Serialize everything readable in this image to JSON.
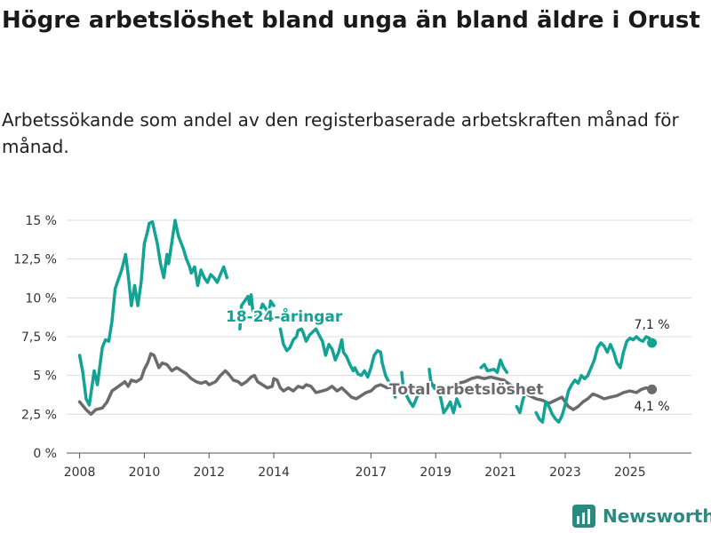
{
  "title": "Högre arbetslöshet bland unga än bland äldre i Orust",
  "subtitle": "Arbetssökande som andel av den registerbaserade arbetskraften månad för månad.",
  "brand": {
    "name": "Newsworthy",
    "icon": "newsworthy-chart-icon",
    "color": "#2a8a80"
  },
  "chart_data": {
    "type": "line",
    "title": "Högre arbetslöshet bland unga än bland äldre i Orust",
    "xlabel": "",
    "ylabel": "",
    "xlim": [
      2007.6,
      2026.9
    ],
    "ylim": [
      0,
      15
    ],
    "y_ticks": [
      0,
      2.5,
      5,
      7.5,
      10,
      12.5,
      15
    ],
    "y_tick_labels": [
      "0 %",
      "2,5 %",
      "5 %",
      "7,5 %",
      "10 %",
      "12,5 %",
      "15 %"
    ],
    "x_ticks": [
      2008,
      2010,
      2012,
      2014,
      2017,
      2019,
      2021,
      2023,
      2025
    ],
    "x_tick_labels": [
      "2008",
      "2010",
      "2012",
      "2014",
      "2017",
      "2019",
      "2021",
      "2023",
      "2025"
    ],
    "grid": true,
    "series": [
      {
        "name": "18-24-åringar",
        "label": "18-24-åringar",
        "color": "#13a394",
        "end_label": "7,1 %",
        "points": [
          [
            2008.0,
            6.3
          ],
          [
            2008.1,
            5.2
          ],
          [
            2008.2,
            3.5
          ],
          [
            2008.3,
            3.1
          ],
          [
            2008.45,
            5.3
          ],
          [
            2008.55,
            4.4
          ],
          [
            2008.7,
            6.8
          ],
          [
            2008.8,
            7.3
          ],
          [
            2008.9,
            7.2
          ],
          [
            2009.0,
            8.5
          ],
          [
            2009.1,
            10.6
          ],
          [
            2009.3,
            11.8
          ],
          [
            2009.42,
            12.8
          ],
          [
            2009.5,
            11.5
          ],
          [
            2009.6,
            9.5
          ],
          [
            2009.7,
            10.8
          ],
          [
            2009.8,
            9.5
          ],
          [
            2009.9,
            11.0
          ],
          [
            2010.0,
            13.5
          ],
          [
            2010.1,
            14.3
          ],
          [
            2010.15,
            14.8
          ],
          [
            2010.25,
            14.9
          ],
          [
            2010.4,
            13.5
          ],
          [
            2010.5,
            12.2
          ],
          [
            2010.6,
            11.3
          ],
          [
            2010.7,
            12.8
          ],
          [
            2010.75,
            12.2
          ],
          [
            2010.85,
            13.6
          ],
          [
            2010.95,
            15.0
          ],
          [
            2011.05,
            14.0
          ],
          [
            2011.2,
            13.2
          ],
          [
            2011.3,
            12.5
          ],
          [
            2011.4,
            12.0
          ],
          [
            2011.45,
            11.6
          ],
          [
            2011.55,
            12.0
          ],
          [
            2011.65,
            10.8
          ],
          [
            2011.75,
            11.8
          ],
          [
            2011.85,
            11.3
          ],
          [
            2011.95,
            11.0
          ],
          [
            2012.05,
            11.5
          ],
          [
            2012.15,
            11.3
          ],
          [
            2012.25,
            11.0
          ],
          [
            2012.35,
            11.5
          ],
          [
            2012.45,
            12.0
          ],
          [
            2012.55,
            11.3
          ]
        ],
        "segments_after_gap": [
          [
            [
              2012.95,
              8.0
            ],
            [
              2013.0,
              9.5
            ],
            [
              2013.1,
              9.8
            ],
            [
              2013.2,
              10.1
            ],
            [
              2013.25,
              9.6
            ],
            [
              2013.3,
              10.2
            ],
            [
              2013.35,
              9.2
            ],
            [
              2013.45,
              8.8
            ],
            [
              2013.55,
              9.0
            ],
            [
              2013.65,
              9.6
            ],
            [
              2013.75,
              9.3
            ],
            [
              2013.85,
              9.0
            ],
            [
              2013.9,
              9.8
            ],
            [
              2014.0,
              9.5
            ]
          ],
          [
            [
              2014.2,
              8.0
            ],
            [
              2014.3,
              7.0
            ],
            [
              2014.4,
              6.6
            ],
            [
              2014.5,
              6.8
            ],
            [
              2014.6,
              7.3
            ],
            [
              2014.7,
              7.5
            ],
            [
              2014.75,
              7.9
            ],
            [
              2014.85,
              8.0
            ],
            [
              2014.9,
              7.8
            ],
            [
              2015.0,
              7.2
            ],
            [
              2015.1,
              7.6
            ],
            [
              2015.2,
              7.8
            ],
            [
              2015.3,
              8.0
            ],
            [
              2015.4,
              7.6
            ],
            [
              2015.5,
              7.2
            ],
            [
              2015.6,
              6.3
            ],
            [
              2015.7,
              7.0
            ],
            [
              2015.8,
              6.7
            ],
            [
              2015.9,
              6.0
            ],
            [
              2016.0,
              6.5
            ],
            [
              2016.1,
              7.3
            ],
            [
              2016.15,
              6.5
            ],
            [
              2016.25,
              6.2
            ],
            [
              2016.35,
              5.7
            ],
            [
              2016.45,
              5.3
            ],
            [
              2016.5,
              5.5
            ],
            [
              2016.6,
              5.1
            ],
            [
              2016.7,
              5.0
            ],
            [
              2016.8,
              5.3
            ],
            [
              2016.9,
              4.9
            ],
            [
              2017.0,
              5.5
            ],
            [
              2017.1,
              6.3
            ],
            [
              2017.2,
              6.6
            ],
            [
              2017.3,
              6.5
            ],
            [
              2017.35,
              5.8
            ],
            [
              2017.45,
              5.0
            ],
            [
              2017.55,
              4.6
            ],
            [
              2017.65,
              4.2
            ],
            [
              2017.75,
              3.6
            ]
          ],
          [
            [
              2017.95,
              5.2
            ],
            [
              2018.0,
              4.2
            ],
            [
              2018.1,
              3.7
            ],
            [
              2018.2,
              3.3
            ],
            [
              2018.3,
              3.0
            ],
            [
              2018.4,
              3.5
            ],
            [
              2018.5,
              4.0
            ],
            [
              2018.6,
              4.0
            ]
          ],
          [
            [
              2018.8,
              5.4
            ],
            [
              2018.85,
              4.6
            ],
            [
              2018.95,
              4.2
            ],
            [
              2019.05,
              4.0
            ],
            [
              2019.15,
              3.6
            ],
            [
              2019.25,
              2.6
            ],
            [
              2019.35,
              2.9
            ],
            [
              2019.45,
              3.3
            ],
            [
              2019.55,
              2.6
            ],
            [
              2019.65,
              3.5
            ],
            [
              2019.75,
              3.0
            ]
          ],
          [
            [
              2020.4,
              5.5
            ],
            [
              2020.5,
              5.7
            ],
            [
              2020.6,
              5.3
            ],
            [
              2020.8,
              5.4
            ],
            [
              2020.9,
              5.2
            ],
            [
              2021.0,
              6.0
            ],
            [
              2021.1,
              5.5
            ],
            [
              2021.2,
              5.2
            ]
          ],
          [
            [
              2021.5,
              3.0
            ],
            [
              2021.6,
              2.6
            ],
            [
              2021.7,
              3.5
            ],
            [
              2021.8,
              4.0
            ]
          ],
          [
            [
              2022.1,
              2.6
            ],
            [
              2022.2,
              2.2
            ],
            [
              2022.3,
              2.0
            ],
            [
              2022.4,
              3.3
            ],
            [
              2022.5,
              3.0
            ],
            [
              2022.6,
              2.5
            ],
            [
              2022.7,
              2.2
            ],
            [
              2022.8,
              2.0
            ],
            [
              2022.9,
              2.4
            ],
            [
              2023.0,
              3.1
            ],
            [
              2023.1,
              4.0
            ],
            [
              2023.2,
              4.4
            ],
            [
              2023.3,
              4.7
            ],
            [
              2023.4,
              4.5
            ],
            [
              2023.5,
              5.0
            ],
            [
              2023.6,
              4.8
            ],
            [
              2023.7,
              5.0
            ],
            [
              2023.8,
              5.5
            ],
            [
              2023.9,
              6.0
            ],
            [
              2024.0,
              6.8
            ],
            [
              2024.1,
              7.1
            ],
            [
              2024.2,
              6.9
            ],
            [
              2024.3,
              6.5
            ],
            [
              2024.4,
              7.0
            ],
            [
              2024.5,
              6.5
            ],
            [
              2024.6,
              5.8
            ],
            [
              2024.7,
              5.5
            ],
            [
              2024.8,
              6.5
            ],
            [
              2024.9,
              7.2
            ],
            [
              2025.0,
              7.4
            ],
            [
              2025.1,
              7.3
            ],
            [
              2025.2,
              7.5
            ],
            [
              2025.3,
              7.3
            ],
            [
              2025.4,
              7.2
            ],
            [
              2025.5,
              7.5
            ],
            [
              2025.6,
              7.4
            ],
            [
              2025.68,
              7.1
            ]
          ]
        ]
      },
      {
        "name": "Total arbetslöshet",
        "label": "Total arbetslöshet",
        "color": "#6b6b6e",
        "end_label": "4,1 %",
        "points": [
          [
            2008.0,
            3.3
          ],
          [
            2008.2,
            2.8
          ],
          [
            2008.35,
            2.5
          ],
          [
            2008.5,
            2.8
          ],
          [
            2008.7,
            2.9
          ],
          [
            2008.85,
            3.3
          ],
          [
            2009.0,
            4.0
          ],
          [
            2009.2,
            4.3
          ],
          [
            2009.4,
            4.6
          ],
          [
            2009.5,
            4.3
          ],
          [
            2009.6,
            4.7
          ],
          [
            2009.75,
            4.6
          ],
          [
            2009.9,
            4.8
          ],
          [
            2010.0,
            5.4
          ],
          [
            2010.1,
            5.8
          ],
          [
            2010.2,
            6.4
          ],
          [
            2010.3,
            6.3
          ],
          [
            2010.45,
            5.5
          ],
          [
            2010.55,
            5.8
          ],
          [
            2010.7,
            5.7
          ],
          [
            2010.85,
            5.3
          ],
          [
            2011.0,
            5.5
          ],
          [
            2011.15,
            5.3
          ],
          [
            2011.3,
            5.1
          ],
          [
            2011.45,
            4.8
          ],
          [
            2011.6,
            4.6
          ],
          [
            2011.75,
            4.5
          ],
          [
            2011.9,
            4.6
          ],
          [
            2012.0,
            4.4
          ],
          [
            2012.2,
            4.6
          ],
          [
            2012.35,
            5.0
          ],
          [
            2012.5,
            5.3
          ],
          [
            2012.6,
            5.1
          ],
          [
            2012.75,
            4.7
          ],
          [
            2012.9,
            4.6
          ],
          [
            2013.0,
            4.4
          ],
          [
            2013.15,
            4.6
          ],
          [
            2013.3,
            4.9
          ],
          [
            2013.4,
            5.0
          ],
          [
            2013.5,
            4.6
          ],
          [
            2013.65,
            4.4
          ],
          [
            2013.8,
            4.2
          ],
          [
            2013.95,
            4.3
          ],
          [
            2014.0,
            4.8
          ],
          [
            2014.1,
            4.7
          ],
          [
            2014.2,
            4.2
          ],
          [
            2014.3,
            4.0
          ],
          [
            2014.45,
            4.2
          ],
          [
            2014.6,
            4.0
          ],
          [
            2014.75,
            4.3
          ],
          [
            2014.9,
            4.2
          ],
          [
            2015.0,
            4.4
          ],
          [
            2015.15,
            4.3
          ],
          [
            2015.3,
            3.9
          ],
          [
            2015.5,
            4.0
          ],
          [
            2015.65,
            4.1
          ],
          [
            2015.8,
            4.3
          ],
          [
            2015.95,
            4.0
          ],
          [
            2016.1,
            4.2
          ],
          [
            2016.25,
            3.9
          ],
          [
            2016.4,
            3.6
          ],
          [
            2016.55,
            3.5
          ],
          [
            2016.7,
            3.7
          ],
          [
            2016.85,
            3.9
          ],
          [
            2017.0,
            4.0
          ],
          [
            2017.15,
            4.3
          ],
          [
            2017.3,
            4.4
          ],
          [
            2017.5,
            4.2
          ],
          [
            2017.7,
            4.3
          ],
          [
            2017.9,
            4.2
          ],
          [
            2018.1,
            4.0
          ],
          [
            2018.3,
            4.1
          ],
          [
            2018.5,
            4.0
          ],
          [
            2018.7,
            4.3
          ],
          [
            2018.9,
            4.4
          ],
          [
            2019.1,
            4.2
          ],
          [
            2019.3,
            4.0
          ],
          [
            2019.5,
            4.3
          ],
          [
            2019.7,
            4.5
          ],
          [
            2019.9,
            4.6
          ],
          [
            2020.1,
            4.8
          ],
          [
            2020.3,
            4.9
          ],
          [
            2020.5,
            4.8
          ],
          [
            2020.7,
            4.9
          ],
          [
            2020.9,
            4.8
          ],
          [
            2021.1,
            4.7
          ],
          [
            2021.3,
            4.4
          ],
          [
            2021.5,
            4.2
          ],
          [
            2021.7,
            3.9
          ],
          [
            2021.9,
            3.7
          ],
          [
            2022.1,
            3.5
          ],
          [
            2022.3,
            3.4
          ],
          [
            2022.5,
            3.2
          ],
          [
            2022.7,
            3.4
          ],
          [
            2022.9,
            3.6
          ],
          [
            2023.1,
            3.0
          ],
          [
            2023.25,
            2.8
          ],
          [
            2023.4,
            3.0
          ],
          [
            2023.55,
            3.3
          ],
          [
            2023.7,
            3.5
          ],
          [
            2023.85,
            3.8
          ],
          [
            2024.0,
            3.7
          ],
          [
            2024.2,
            3.5
          ],
          [
            2024.4,
            3.6
          ],
          [
            2024.6,
            3.7
          ],
          [
            2024.8,
            3.9
          ],
          [
            2025.0,
            4.0
          ],
          [
            2025.2,
            3.9
          ],
          [
            2025.35,
            4.1
          ],
          [
            2025.5,
            4.2
          ],
          [
            2025.68,
            4.1
          ]
        ]
      }
    ]
  }
}
